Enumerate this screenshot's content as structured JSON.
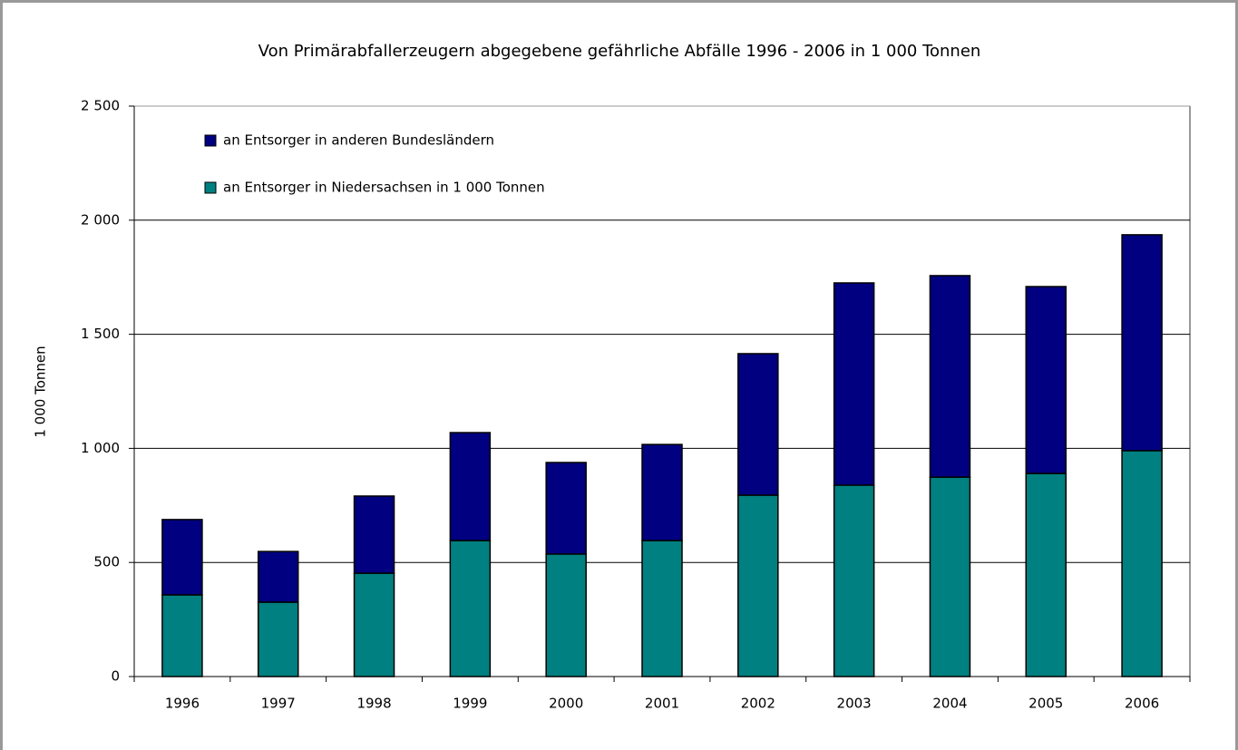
{
  "chart_data": {
    "type": "stacked_bar",
    "title": "Von Primärabfallerzeugern abgegebene gefährliche Abfälle 1996 - 2006 in 1 000 Tonnen",
    "y_label": "1 000 Tonnen",
    "categories": [
      "1996",
      "1997",
      "1998",
      "1999",
      "2000",
      "2001",
      "2002",
      "2003",
      "2004",
      "2005",
      "2006"
    ],
    "series": [
      {
        "name": "an Entsorger in Niedersachsen in 1 000 Tonnen",
        "color": "#008080",
        "values": [
          358,
          326,
          453,
          596,
          537,
          596,
          795,
          839,
          874,
          890,
          990
        ]
      },
      {
        "name": "an Entsorger in anderen Bundesländern",
        "color": "#000080",
        "values": [
          330,
          222,
          338,
          473,
          401,
          421,
          620,
          886,
          883,
          819,
          946
        ]
      }
    ],
    "ylim": [
      0,
      2500
    ],
    "yticks": [
      0,
      500,
      {
        "value": 1000,
        "label": "1 000"
      },
      {
        "value": 1500,
        "label": "1 500"
      },
      {
        "value": 2000,
        "label": "2 000"
      },
      {
        "value": 2500,
        "label": "2 500"
      }
    ],
    "grid": true,
    "legend": "top-left"
  }
}
